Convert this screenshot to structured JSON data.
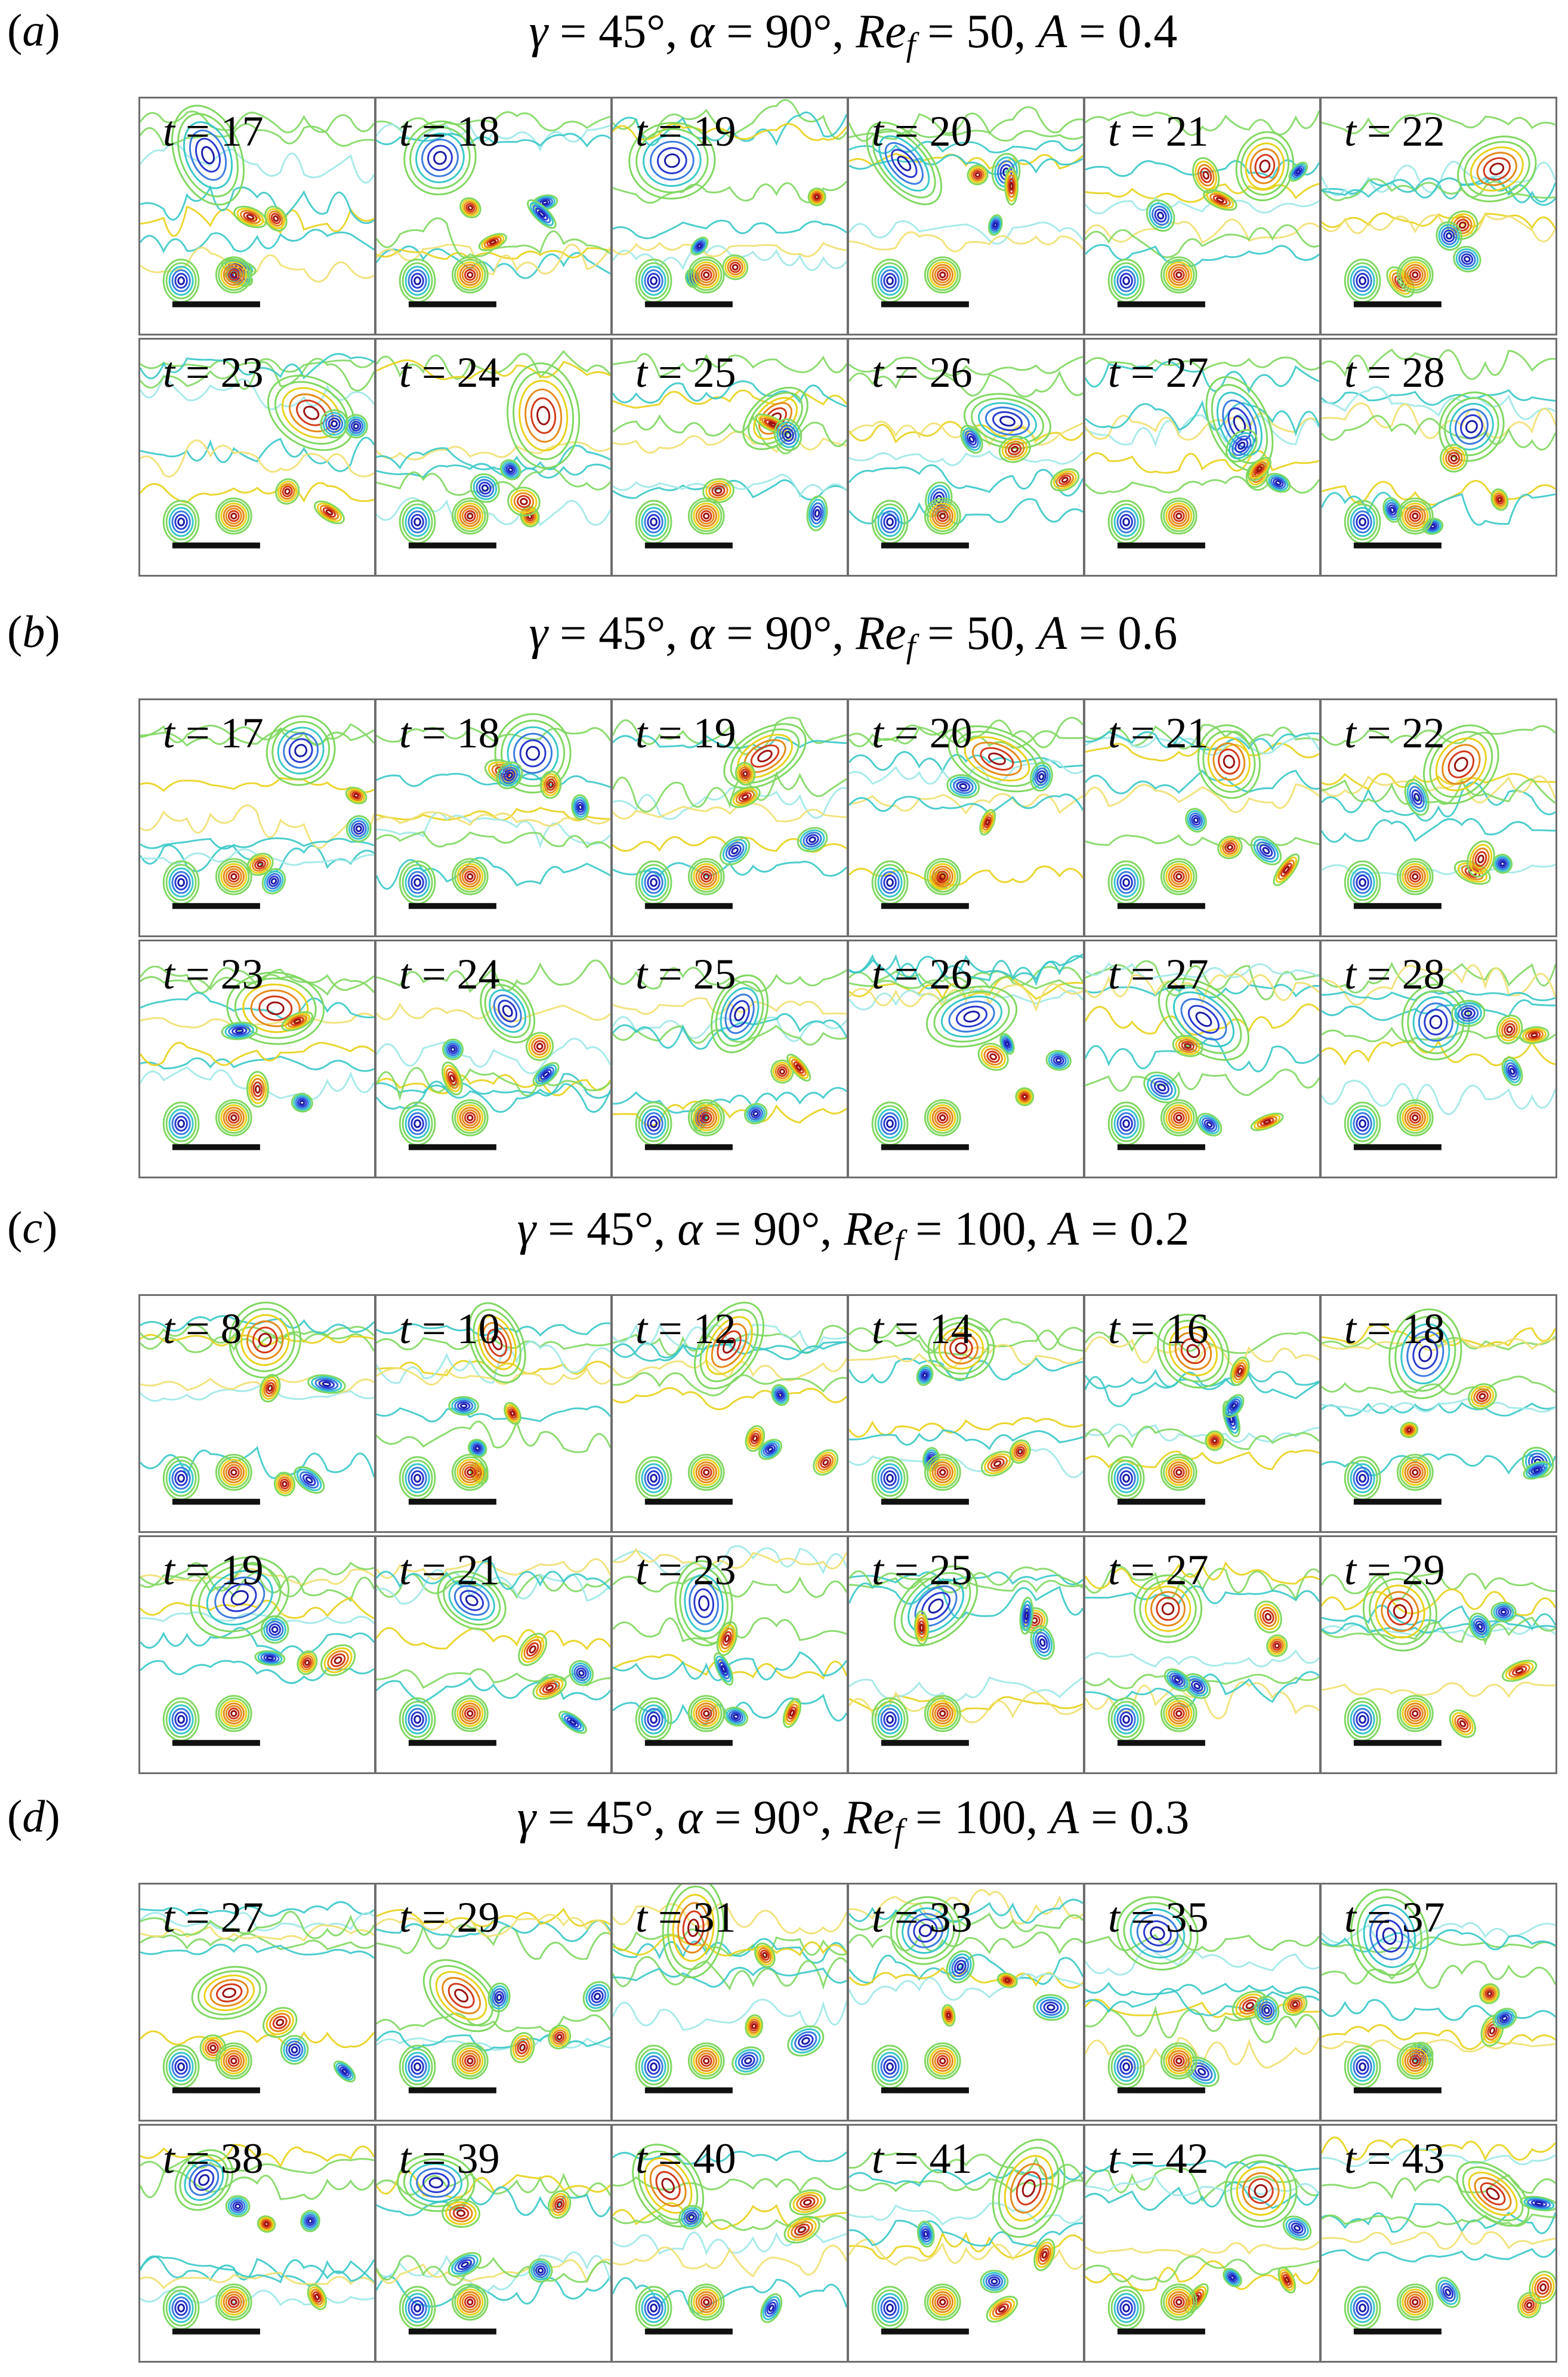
{
  "panels": [
    {
      "label": "a",
      "title": {
        "gamma": "45°",
        "alpha": "90°",
        "Re_f": "50",
        "A": "0.4"
      },
      "times": [
        "17",
        "18",
        "19",
        "20",
        "21",
        "22",
        "23",
        "24",
        "25",
        "26",
        "27",
        "28"
      ]
    },
    {
      "label": "b",
      "title": {
        "gamma": "45°",
        "alpha": "90°",
        "Re_f": "50",
        "A": "0.6"
      },
      "times": [
        "17",
        "18",
        "19",
        "20",
        "21",
        "22",
        "23",
        "24",
        "25",
        "26",
        "27",
        "28"
      ]
    },
    {
      "label": "c",
      "title": {
        "gamma": "45°",
        "alpha": "90°",
        "Re_f": "100",
        "A": "0.2"
      },
      "times": [
        "8",
        "10",
        "12",
        "14",
        "16",
        "18",
        "19",
        "21",
        "23",
        "25",
        "27",
        "29"
      ]
    },
    {
      "label": "d",
      "title": {
        "gamma": "45°",
        "alpha": "90°",
        "Re_f": "100",
        "A": "0.3"
      },
      "times": [
        "27",
        "29",
        "31",
        "33",
        "35",
        "37",
        "38",
        "39",
        "40",
        "41",
        "42",
        "43"
      ]
    }
  ],
  "colors": {
    "positive_vorticity": "#9b1010",
    "negative_vorticity": "#1a1aa8",
    "mid_warm": "#e8d21a",
    "mid_cool": "#38c8c8",
    "background_contour": "#7fd860",
    "frame_border": "#6e6e6e"
  }
}
